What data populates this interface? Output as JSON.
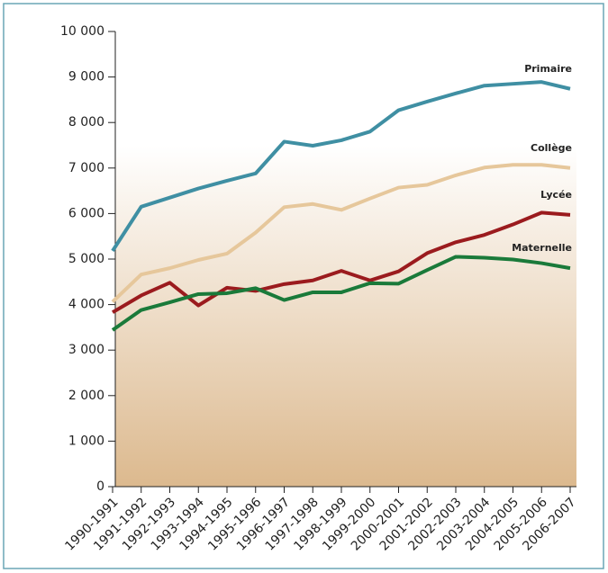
{
  "chart_data": {
    "type": "line",
    "categories": [
      "1990-1991",
      "1991-1992",
      "1992-1993",
      "1993-1994",
      "1994-1995",
      "1995-1996",
      "1996-1997",
      "1997-1998",
      "1998-1999",
      "1999-2000",
      "2000-2001",
      "2001-2002",
      "2002-2003",
      "2003-2004",
      "2004-2005",
      "2005-2006",
      "2006-2007"
    ],
    "series": [
      {
        "name": "Primaire",
        "color": "#3f8fa3",
        "values": [
          5180,
          6150,
          6350,
          6550,
          6720,
          6880,
          7580,
          7490,
          7610,
          7800,
          8270,
          8460,
          8640,
          8810,
          8850,
          8890,
          8740
        ]
      },
      {
        "name": "Collège",
        "color": "#e6c79b",
        "values": [
          4060,
          4660,
          4800,
          4980,
          5120,
          5580,
          6140,
          6210,
          6080,
          6330,
          6570,
          6630,
          6840,
          7010,
          7070,
          7070,
          7000
        ]
      },
      {
        "name": "Lycée",
        "color": "#9b1b1e",
        "values": [
          3830,
          4200,
          4480,
          3980,
          4370,
          4300,
          4450,
          4530,
          4740,
          4530,
          4730,
          5130,
          5370,
          5530,
          5760,
          6020,
          5970
        ]
      },
      {
        "name": "Maternelle",
        "color": "#1a7a3a",
        "values": [
          3440,
          3880,
          4050,
          4230,
          4250,
          4360,
          4100,
          4270,
          4270,
          4470,
          4460,
          4760,
          5050,
          5030,
          4990,
          4910,
          4800
        ]
      }
    ],
    "ylim": [
      0,
      10000
    ],
    "yticks": [
      0,
      {
        "value": 1000,
        "label": "1 000"
      },
      {
        "value": 2000,
        "label": "2 000"
      },
      {
        "value": 3000,
        "label": "3 000"
      },
      {
        "value": 4000,
        "label": "4 000"
      },
      {
        "value": 5000,
        "label": "5 000"
      },
      {
        "value": 6000,
        "label": "6 000"
      },
      {
        "value": 7000,
        "label": "7 000"
      },
      {
        "value": 8000,
        "label": "8 000"
      },
      {
        "value": 9000,
        "label": "9 000"
      },
      {
        "value": 10000,
        "label": "10 000"
      }
    ]
  }
}
